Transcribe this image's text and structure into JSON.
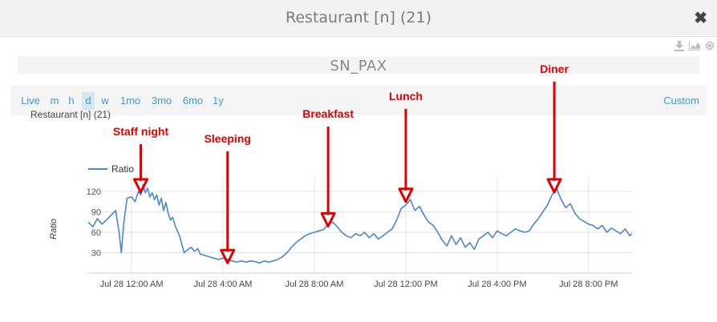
{
  "window": {
    "title": "Restaurant [n] (21)",
    "close_glyph": "✖"
  },
  "toolbar_icons": [
    "download-icon",
    "area-chart-icon",
    "gear-icon"
  ],
  "ranges": {
    "items": [
      "Live",
      "m",
      "h",
      "d",
      "w",
      "1mo",
      "3mo",
      "6mo",
      "1y"
    ],
    "active": "d",
    "custom_label": "Custom"
  },
  "chart_data": {
    "type": "line",
    "title": "SN_PAX",
    "subtitle": "Restaurant [n] (21)",
    "ylabel": "Ratio",
    "xlabel": "",
    "ylim": [
      0,
      140
    ],
    "yticks": [
      30,
      60,
      90,
      120
    ],
    "xticks": [
      "Jul 28 12:00 AM",
      "Jul 28 4:00 AM",
      "Jul 28 8:00 AM",
      "Jul 28 12:00 PM",
      "Jul 28 4:00 PM",
      "Jul 28 8:00 PM"
    ],
    "xtick_hours": [
      0,
      4,
      8,
      12,
      16,
      20
    ],
    "xlim_hours": [
      -1.9,
      21.9
    ],
    "legend": {
      "entries": [
        "Ratio"
      ],
      "placement": "top-left"
    },
    "grid": true,
    "series": [
      {
        "name": "Ratio",
        "color": "#4a86d1",
        "points": [
          [
            -1.9,
            75
          ],
          [
            -1.7,
            68
          ],
          [
            -1.5,
            80
          ],
          [
            -1.3,
            72
          ],
          [
            -1.1,
            78
          ],
          [
            -0.9,
            85
          ],
          [
            -0.7,
            92
          ],
          [
            -0.55,
            60
          ],
          [
            -0.45,
            30
          ],
          [
            -0.35,
            72
          ],
          [
            -0.2,
            110
          ],
          [
            0.0,
            112
          ],
          [
            0.15,
            105
          ],
          [
            0.3,
            120
          ],
          [
            0.4,
            115
          ],
          [
            0.5,
            130
          ],
          [
            0.6,
            118
          ],
          [
            0.7,
            125
          ],
          [
            0.8,
            112
          ],
          [
            0.9,
            118
          ],
          [
            1.0,
            108
          ],
          [
            1.1,
            115
          ],
          [
            1.2,
            100
          ],
          [
            1.3,
            110
          ],
          [
            1.4,
            92
          ],
          [
            1.5,
            104
          ],
          [
            1.6,
            88
          ],
          [
            1.7,
            78
          ],
          [
            1.8,
            82
          ],
          [
            1.9,
            70
          ],
          [
            2.0,
            62
          ],
          [
            2.1,
            55
          ],
          [
            2.2,
            42
          ],
          [
            2.3,
            30
          ],
          [
            2.45,
            34
          ],
          [
            2.6,
            38
          ],
          [
            2.75,
            32
          ],
          [
            2.9,
            36
          ],
          [
            3.0,
            28
          ],
          [
            3.2,
            26
          ],
          [
            3.4,
            24
          ],
          [
            3.6,
            22
          ],
          [
            3.8,
            20
          ],
          [
            4.0,
            22
          ],
          [
            4.2,
            20
          ],
          [
            4.4,
            18
          ],
          [
            4.6,
            16
          ],
          [
            4.8,
            18
          ],
          [
            5.0,
            16
          ],
          [
            5.2,
            18
          ],
          [
            5.4,
            17
          ],
          [
            5.6,
            15
          ],
          [
            5.8,
            18
          ],
          [
            6.0,
            16
          ],
          [
            6.2,
            18
          ],
          [
            6.4,
            20
          ],
          [
            6.6,
            24
          ],
          [
            6.8,
            30
          ],
          [
            7.0,
            38
          ],
          [
            7.2,
            45
          ],
          [
            7.4,
            50
          ],
          [
            7.6,
            55
          ],
          [
            7.8,
            58
          ],
          [
            8.0,
            60
          ],
          [
            8.2,
            62
          ],
          [
            8.4,
            64
          ],
          [
            8.6,
            72
          ],
          [
            8.8,
            75
          ],
          [
            9.0,
            68
          ],
          [
            9.2,
            60
          ],
          [
            9.4,
            55
          ],
          [
            9.6,
            52
          ],
          [
            9.8,
            58
          ],
          [
            10.0,
            55
          ],
          [
            10.2,
            60
          ],
          [
            10.4,
            52
          ],
          [
            10.6,
            58
          ],
          [
            10.8,
            50
          ],
          [
            11.0,
            55
          ],
          [
            11.2,
            60
          ],
          [
            11.4,
            65
          ],
          [
            11.6,
            78
          ],
          [
            11.8,
            95
          ],
          [
            12.0,
            100
          ],
          [
            12.2,
            108
          ],
          [
            12.4,
            92
          ],
          [
            12.6,
            98
          ],
          [
            12.8,
            85
          ],
          [
            13.0,
            75
          ],
          [
            13.2,
            70
          ],
          [
            13.4,
            60
          ],
          [
            13.6,
            48
          ],
          [
            13.8,
            40
          ],
          [
            14.0,
            55
          ],
          [
            14.2,
            42
          ],
          [
            14.4,
            52
          ],
          [
            14.6,
            38
          ],
          [
            14.8,
            45
          ],
          [
            15.0,
            35
          ],
          [
            15.2,
            50
          ],
          [
            15.4,
            55
          ],
          [
            15.6,
            60
          ],
          [
            15.8,
            52
          ],
          [
            16.0,
            62
          ],
          [
            16.2,
            58
          ],
          [
            16.4,
            55
          ],
          [
            16.6,
            60
          ],
          [
            16.8,
            65
          ],
          [
            17.0,
            62
          ],
          [
            17.2,
            60
          ],
          [
            17.4,
            62
          ],
          [
            17.6,
            72
          ],
          [
            17.8,
            80
          ],
          [
            18.0,
            90
          ],
          [
            18.2,
            100
          ],
          [
            18.4,
            115
          ],
          [
            18.6,
            124
          ],
          [
            18.8,
            108
          ],
          [
            19.0,
            96
          ],
          [
            19.2,
            102
          ],
          [
            19.4,
            88
          ],
          [
            19.6,
            80
          ],
          [
            19.8,
            76
          ],
          [
            20.0,
            72
          ],
          [
            20.2,
            70
          ],
          [
            20.4,
            65
          ],
          [
            20.6,
            70
          ],
          [
            20.8,
            60
          ],
          [
            21.0,
            66
          ],
          [
            21.2,
            62
          ],
          [
            21.4,
            58
          ],
          [
            21.6,
            65
          ],
          [
            21.8,
            55
          ],
          [
            21.9,
            58
          ]
        ]
      }
    ],
    "annotations": [
      {
        "label": "Staff night",
        "x_hour": 0.4,
        "y": 126,
        "color": "#e00000"
      },
      {
        "label": "Sleeping",
        "x_hour": 4.2,
        "y": 22,
        "color": "#e00000"
      },
      {
        "label": "Breakfast",
        "x_hour": 8.6,
        "y": 76,
        "color": "#e00000"
      },
      {
        "label": "Lunch",
        "x_hour": 12.0,
        "y": 112,
        "color": "#e00000"
      },
      {
        "label": "Diner",
        "x_hour": 18.5,
        "y": 126,
        "color": "#e00000"
      }
    ]
  }
}
